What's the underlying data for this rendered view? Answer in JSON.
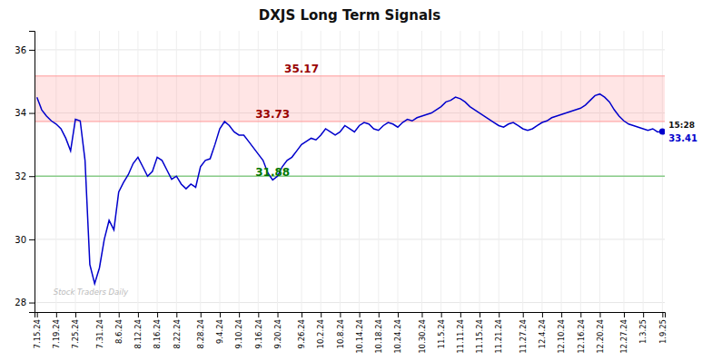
{
  "chart_data": {
    "type": "line",
    "title": "DXJS Long Term Signals",
    "categories": [
      "7.15.24",
      null,
      null,
      null,
      "7.19.24",
      null,
      null,
      null,
      "7.25.24",
      null,
      null,
      null,
      null,
      "7.31.24",
      null,
      null,
      null,
      "8.6.24",
      null,
      null,
      null,
      "8.12.24",
      null,
      null,
      null,
      "8.16.24",
      null,
      null,
      null,
      "8.22.24",
      null,
      null,
      null,
      null,
      "8.28.24",
      null,
      null,
      null,
      "9.4.24",
      null,
      null,
      null,
      "9.10.24",
      null,
      null,
      null,
      "9.16.24",
      null,
      null,
      null,
      "9.20.24",
      null,
      null,
      null,
      null,
      "9.26.24",
      null,
      null,
      null,
      "10.2.24",
      null,
      null,
      null,
      "10.8.24",
      null,
      null,
      null,
      "10.14.24",
      null,
      null,
      null,
      "10.18.24",
      null,
      null,
      null,
      "10.24.24",
      null,
      null,
      null,
      null,
      "10.30.24",
      null,
      null,
      null,
      "11.5.24",
      null,
      null,
      null,
      "11.11.24",
      null,
      null,
      null,
      "11.15.24",
      null,
      null,
      null,
      "11.21.24",
      null,
      null,
      null,
      null,
      "11.27.24",
      null,
      null,
      null,
      "12.4.24",
      null,
      null,
      null,
      "12.10.24",
      null,
      null,
      null,
      "12.16.24",
      null,
      null,
      null,
      "12.20.24",
      null,
      null,
      null,
      null,
      "12.27.24",
      null,
      null,
      null,
      "1.3.25",
      null,
      null,
      null,
      "1.9.25"
    ],
    "values": [
      34.5,
      34.1,
      33.9,
      33.75,
      33.65,
      33.5,
      33.2,
      32.8,
      33.8,
      33.75,
      32.5,
      29.2,
      28.6,
      29.1,
      30.0,
      30.6,
      30.3,
      31.5,
      31.8,
      32.05,
      32.4,
      32.6,
      32.3,
      32.0,
      32.15,
      32.6,
      32.5,
      32.2,
      31.9,
      32.0,
      31.75,
      31.6,
      31.75,
      31.65,
      32.3,
      32.5,
      32.55,
      33.0,
      33.5,
      33.73,
      33.6,
      33.4,
      33.3,
      33.3,
      33.1,
      32.9,
      32.7,
      32.5,
      32.1,
      31.88,
      32.0,
      32.3,
      32.5,
      32.6,
      32.8,
      33.0,
      33.1,
      33.2,
      33.15,
      33.3,
      33.5,
      33.4,
      33.3,
      33.4,
      33.6,
      33.5,
      33.4,
      33.6,
      33.7,
      33.65,
      33.5,
      33.45,
      33.6,
      33.7,
      33.65,
      33.55,
      33.7,
      33.8,
      33.75,
      33.85,
      33.9,
      33.95,
      34.0,
      34.1,
      34.2,
      34.35,
      34.4,
      34.5,
      34.45,
      34.35,
      34.2,
      34.1,
      34.0,
      33.9,
      33.8,
      33.7,
      33.6,
      33.55,
      33.65,
      33.7,
      33.6,
      33.5,
      33.45,
      33.5,
      33.6,
      33.7,
      33.75,
      33.85,
      33.9,
      33.95,
      34.0,
      34.05,
      34.1,
      34.15,
      34.25,
      34.4,
      34.55,
      34.6,
      34.5,
      34.35,
      34.1,
      33.9,
      33.75,
      33.65,
      33.6,
      33.55,
      33.5,
      33.45,
      33.5,
      33.4,
      33.41
    ],
    "color": "#0000cc",
    "ylim": [
      27.7,
      36.6
    ],
    "yticks": [
      28,
      30,
      32,
      34,
      36
    ],
    "grid": true,
    "band": {
      "low": 33.73,
      "high": 35.17,
      "color": "#ff9999"
    },
    "reference_lines": [
      {
        "value": 32.0,
        "color": "#88cc88"
      }
    ],
    "annotations": [
      {
        "text": "35.17",
        "x": 55,
        "y": 35.17,
        "color": "#990000"
      },
      {
        "text": "33.73",
        "x": 49,
        "y": 33.73,
        "color": "#990000"
      },
      {
        "text": "31.88",
        "x": 49,
        "y": 31.88,
        "color": "#007700"
      },
      {
        "text": "15:28",
        "x": 130,
        "y": 33.41,
        "color": "#111111"
      },
      {
        "text": "33.41",
        "x": 130,
        "y": 33.41,
        "color": "#0000cc"
      }
    ],
    "watermark": "Stock Traders Daily"
  }
}
